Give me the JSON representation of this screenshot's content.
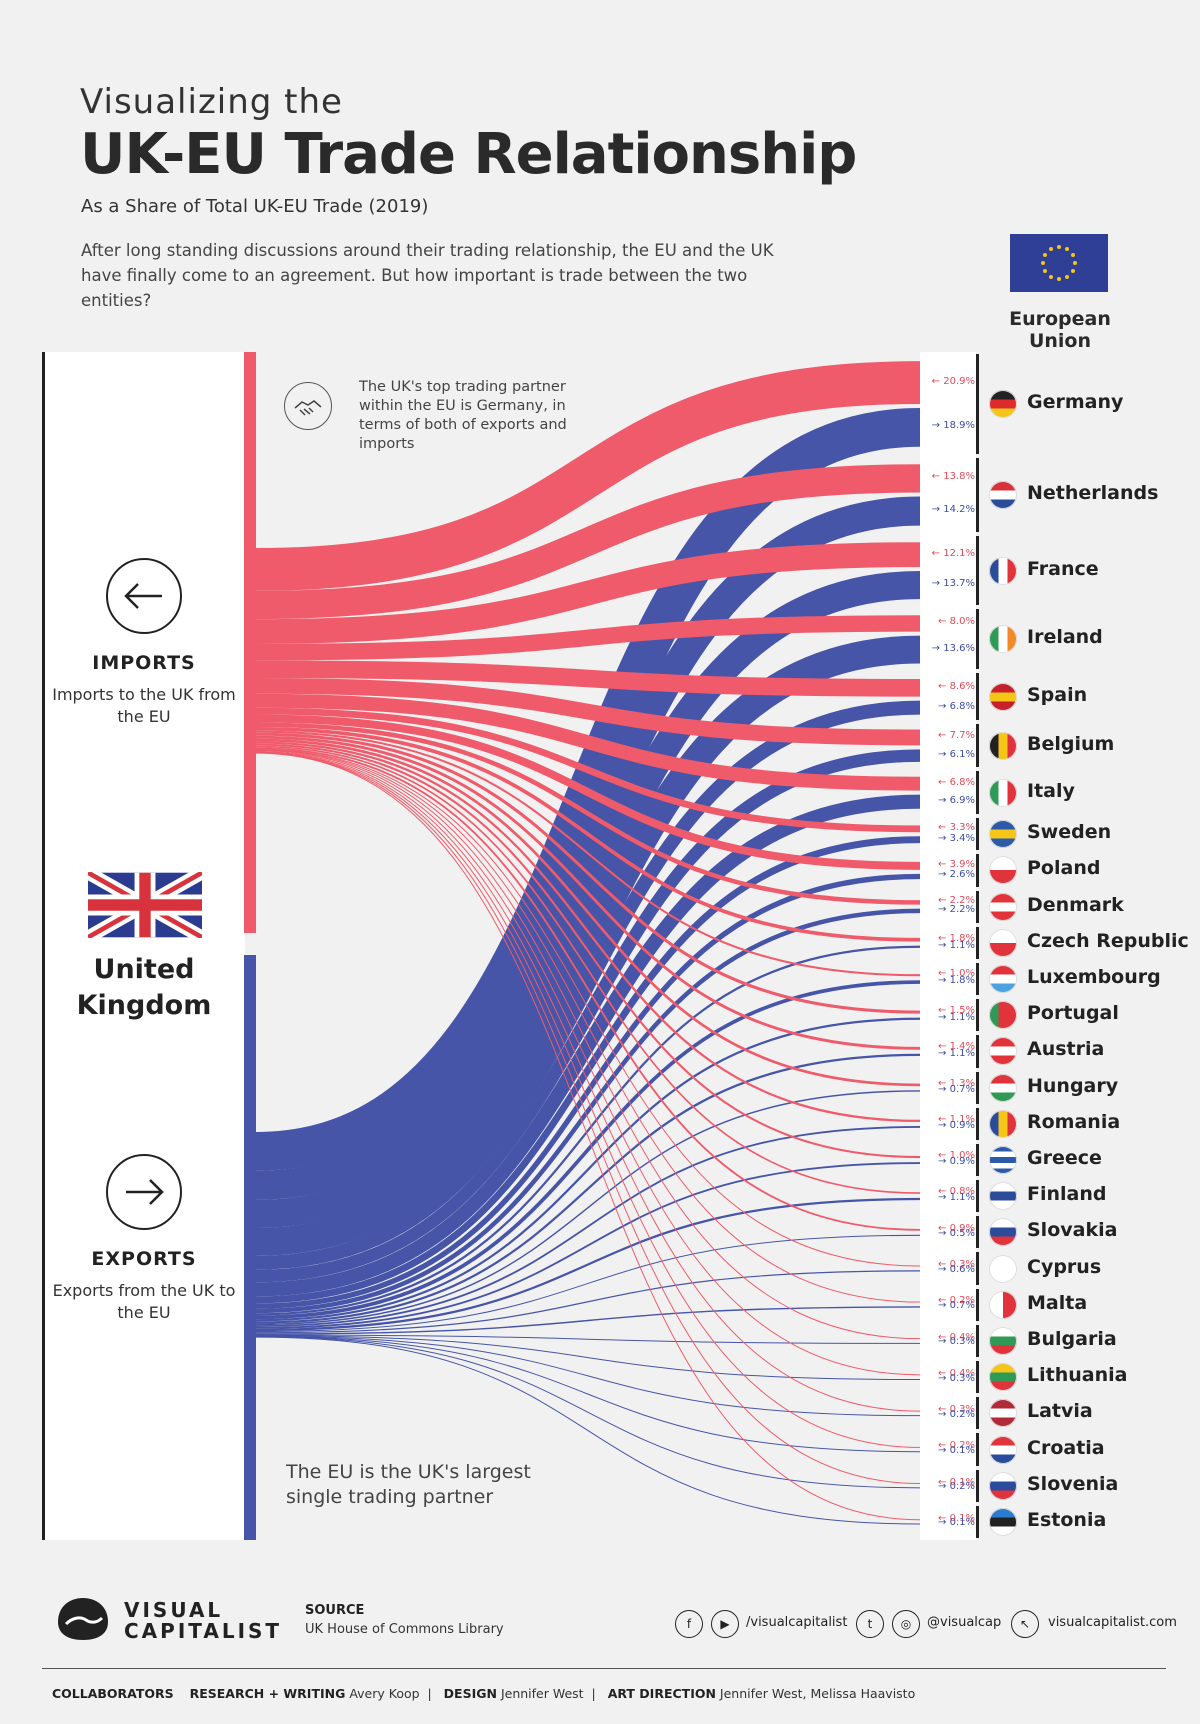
{
  "header": {
    "kicker": "Visualizing the",
    "title": "UK-EU Trade Relationship",
    "subtitle": "As a Share of Total UK-EU Trade (2019)",
    "intro": "After long standing discussions around their trading relationship, the EU and the UK have finally come to an agreement. But how important is trade between the two entities?"
  },
  "eu": {
    "label": "European Union"
  },
  "uk": {
    "name_line1": "United",
    "name_line2": "Kingdom"
  },
  "imports": {
    "heading": "IMPORTS",
    "description": "Imports to the UK from the EU"
  },
  "exports": {
    "heading": "EXPORTS",
    "description": "Exports from the UK to the EU"
  },
  "notes": {
    "top": "The UK's top trading partner within the EU is Germany, in terms of both of exports and imports",
    "bottom": "The EU is the UK's largest single trading partner"
  },
  "colors": {
    "imports": "#ef5b6b",
    "exports": "#4655a8"
  },
  "chart_data": {
    "type": "sankey",
    "title": "UK-EU Trade Relationship",
    "units": "percent",
    "series": [
      {
        "name": "IMPORTS",
        "direction": "to UK"
      },
      {
        "name": "EXPORTS",
        "direction": "from UK"
      }
    ],
    "countries": [
      {
        "name": "Germany",
        "imports": 20.9,
        "exports": 18.9,
        "imports_label": "← 20.9%",
        "exports_label": "→ 18.9%"
      },
      {
        "name": "Netherlands",
        "imports": 13.8,
        "exports": 14.2,
        "imports_label": "← 13.8%",
        "exports_label": "→ 14.2%"
      },
      {
        "name": "France",
        "imports": 12.1,
        "exports": 13.7,
        "imports_label": "← 12.1%",
        "exports_label": "→ 13.7%"
      },
      {
        "name": "Ireland",
        "imports": 8.0,
        "exports": 13.6,
        "imports_label": "← 8.0%",
        "exports_label": "→ 13.6%"
      },
      {
        "name": "Spain",
        "imports": 8.6,
        "exports": 6.8,
        "imports_label": "← 8.6%",
        "exports_label": "→ 6.8%"
      },
      {
        "name": "Belgium",
        "imports": 7.7,
        "exports": 6.1,
        "imports_label": "← 7.7%",
        "exports_label": "→ 6.1%"
      },
      {
        "name": "Italy",
        "imports": 6.8,
        "exports": 6.9,
        "imports_label": "← 6.8%",
        "exports_label": "→ 6.9%"
      },
      {
        "name": "Sweden",
        "imports": 3.3,
        "exports": 3.4,
        "imports_label": "← 3.3%",
        "exports_label": "→ 3.4%"
      },
      {
        "name": "Poland",
        "imports": 3.9,
        "exports": 2.6,
        "imports_label": "← 3.9%",
        "exports_label": "→ 2.6%"
      },
      {
        "name": "Denmark",
        "imports": 2.2,
        "exports": 2.2,
        "imports_label": "← 2.2%",
        "exports_label": "→ 2.2%"
      },
      {
        "name": "Czech Republic",
        "imports": 1.8,
        "exports": 1.1,
        "imports_label": "← 1.8%",
        "exports_label": "→ 1.1%"
      },
      {
        "name": "Luxembourg",
        "imports": 1.0,
        "exports": 1.8,
        "imports_label": "← 1.0%",
        "exports_label": "→ 1.8%"
      },
      {
        "name": "Portugal",
        "imports": 1.5,
        "exports": 1.1,
        "imports_label": "← 1.5%",
        "exports_label": "→ 1.1%"
      },
      {
        "name": "Austria",
        "imports": 1.4,
        "exports": 1.1,
        "imports_label": "← 1.4%",
        "exports_label": "→ 1.1%"
      },
      {
        "name": "Hungary",
        "imports": 1.3,
        "exports": 0.7,
        "imports_label": "← 1.3%",
        "exports_label": "→ 0.7%"
      },
      {
        "name": "Romania",
        "imports": 1.1,
        "exports": 0.9,
        "imports_label": "← 1.1%",
        "exports_label": "→ 0.9%"
      },
      {
        "name": "Greece",
        "imports": 1.0,
        "exports": 0.9,
        "imports_label": "← 1.0%",
        "exports_label": "→ 0.9%"
      },
      {
        "name": "Finland",
        "imports": 0.8,
        "exports": 1.1,
        "imports_label": "← 0.8%",
        "exports_label": "→ 1.1%"
      },
      {
        "name": "Slovakia",
        "imports": 0.9,
        "exports": 0.5,
        "imports_label": "← 0.9%",
        "exports_label": "→ 0.5%"
      },
      {
        "name": "Cyprus",
        "imports": 0.3,
        "exports": 0.6,
        "imports_label": "← 0.3%",
        "exports_label": "→ 0.6%"
      },
      {
        "name": "Malta",
        "imports": 0.2,
        "exports": 0.7,
        "imports_label": "← 0.2%",
        "exports_label": "→ 0.7%"
      },
      {
        "name": "Bulgaria",
        "imports": 0.4,
        "exports": 0.3,
        "imports_label": "← 0.4%",
        "exports_label": "→ 0.3%"
      },
      {
        "name": "Lithuania",
        "imports": 0.4,
        "exports": 0.3,
        "imports_label": "← 0.4%",
        "exports_label": "→ 0.3%"
      },
      {
        "name": "Latvia",
        "imports": 0.3,
        "exports": 0.2,
        "imports_label": "← 0.3%",
        "exports_label": "→ 0.2%"
      },
      {
        "name": "Croatia",
        "imports": 0.2,
        "exports": 0.1,
        "imports_label": "← 0.2%",
        "exports_label": "→ 0.1%"
      },
      {
        "name": "Slovenia",
        "imports": 0.1,
        "exports": 0.2,
        "imports_label": "← 0.1%",
        "exports_label": "→ 0.2%"
      },
      {
        "name": "Estonia",
        "imports": 0.1,
        "exports": 0.1,
        "imports_label": "← 0.1%",
        "exports_label": "→ 0.1%"
      }
    ]
  },
  "flags": {
    "Germany": [
      "#222222",
      "#dd2b2b",
      "#f5c518"
    ],
    "Netherlands": [
      "#d8333c",
      "#ffffff",
      "#2b4b9b"
    ],
    "France": [
      "v",
      "#2b4b9b",
      "#ffffff",
      "#e0333c"
    ],
    "Ireland": [
      "v",
      "#2f9a55",
      "#ffffff",
      "#f08a28"
    ],
    "Spain": [
      "#c8202b",
      "#f5c518",
      "#c8202b"
    ],
    "Belgium": [
      "v",
      "#222222",
      "#f5c518",
      "#e0333c"
    ],
    "Italy": [
      "v",
      "#2f9a55",
      "#ffffff",
      "#e0333c"
    ],
    "Sweden": [
      "#2b5ba8",
      "#f5c518",
      "#2b5ba8"
    ],
    "Poland": [
      "#ffffff",
      "#e0333c"
    ],
    "Denmark": [
      "#e0333c",
      "#ffffff",
      "#e0333c"
    ],
    "Czech Republic": [
      "#ffffff",
      "#e0333c"
    ],
    "Luxembourg": [
      "#e0333c",
      "#ffffff",
      "#4aa3e0"
    ],
    "Portugal": [
      "v",
      "#2f9a55",
      "#e0333c",
      "#e0333c"
    ],
    "Austria": [
      "#e0333c",
      "#ffffff",
      "#e0333c"
    ],
    "Hungary": [
      "#e0333c",
      "#ffffff",
      "#2f9a55"
    ],
    "Romania": [
      "v",
      "#2b4b9b",
      "#f5c518",
      "#e0333c"
    ],
    "Greece": [
      "#2b5ba8",
      "#ffffff",
      "#2b5ba8",
      "#ffffff",
      "#2b5ba8"
    ],
    "Finland": [
      "#ffffff",
      "#2b4b9b",
      "#ffffff"
    ],
    "Slovakia": [
      "#ffffff",
      "#2b4b9b",
      "#e0333c"
    ],
    "Cyprus": [
      "#ffffff",
      "#ffffff"
    ],
    "Malta": [
      "v",
      "#ffffff",
      "#e0333c"
    ],
    "Bulgaria": [
      "#ffffff",
      "#2f9a55",
      "#e0333c"
    ],
    "Lithuania": [
      "#f5c518",
      "#2f9a55",
      "#e0333c"
    ],
    "Latvia": [
      "#b02a37",
      "#ffffff",
      "#b02a37"
    ],
    "Croatia": [
      "#e0333c",
      "#ffffff",
      "#2b4b9b"
    ],
    "Slovenia": [
      "#ffffff",
      "#2b4b9b",
      "#e0333c"
    ],
    "Estonia": [
      "#2b7bd0",
      "#222222",
      "#ffffff"
    ]
  },
  "footer": {
    "logo_line1": "VISUAL",
    "logo_line2": "CAPITALIST",
    "source_heading": "SOURCE",
    "source_text": "UK House of Commons Library",
    "social_1": "/visualcapitalist",
    "social_2": "@visualcap",
    "website": "visualcapitalist.com",
    "collaborators_label": "COLLABORATORS",
    "research_label": "RESEARCH + WRITING",
    "research_name": "Avery Koop",
    "design_label": "DESIGN",
    "design_name": "Jennifer West",
    "art_label": "ART DIRECTION",
    "art_name": "Jennifer West, Melissa Haavisto",
    "sep": "|"
  }
}
